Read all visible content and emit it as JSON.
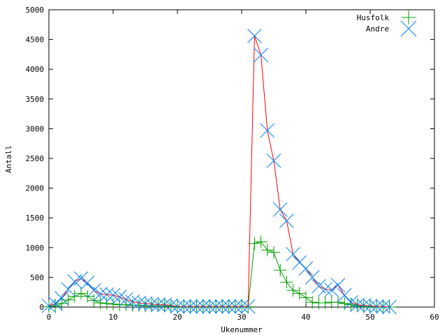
{
  "chart_data": {
    "type": "line",
    "title": "",
    "xlabel": "Ukenummer",
    "ylabel": "Antall",
    "xlim": [
      0,
      60
    ],
    "ylim": [
      0,
      5000
    ],
    "xticks": [
      0,
      10,
      20,
      30,
      40,
      50,
      60
    ],
    "yticks": [
      0,
      500,
      1000,
      1500,
      2000,
      2500,
      3000,
      3500,
      4000,
      4500,
      5000
    ],
    "grid": false,
    "legend_position": "top-right",
    "series": [
      {
        "name": "Husfolk",
        "marker": "plus",
        "color": "#00a000",
        "line_color": "#00a000",
        "x": [
          0,
          1,
          2,
          3,
          4,
          5,
          6,
          7,
          8,
          9,
          10,
          11,
          12,
          13,
          14,
          15,
          16,
          17,
          18,
          19,
          20,
          21,
          22,
          23,
          24,
          25,
          26,
          27,
          28,
          29,
          30,
          31,
          32,
          33,
          34,
          35,
          36,
          37,
          38,
          39,
          40,
          41,
          42,
          43,
          44,
          45,
          46,
          47,
          48,
          49,
          50,
          51,
          52,
          53
        ],
        "y": [
          10,
          20,
          60,
          120,
          180,
          230,
          180,
          110,
          70,
          60,
          50,
          40,
          40,
          30,
          30,
          20,
          20,
          20,
          20,
          10,
          5,
          5,
          5,
          5,
          5,
          5,
          5,
          5,
          5,
          5,
          5,
          5,
          1070,
          1100,
          960,
          920,
          620,
          420,
          280,
          230,
          160,
          80,
          70,
          70,
          80,
          80,
          60,
          40,
          20,
          10,
          5,
          5,
          0,
          0
        ]
      },
      {
        "name": "Andre",
        "marker": "cross",
        "color": "#0080ff",
        "line_color": "#ff0000",
        "x": [
          0,
          1,
          2,
          3,
          4,
          5,
          6,
          7,
          8,
          9,
          10,
          11,
          12,
          13,
          14,
          15,
          16,
          17,
          18,
          19,
          20,
          21,
          22,
          23,
          24,
          25,
          26,
          27,
          28,
          29,
          30,
          31,
          32,
          33,
          34,
          35,
          36,
          37,
          38,
          39,
          40,
          41,
          42,
          43,
          44,
          45,
          46,
          47,
          48,
          49,
          50,
          51,
          52,
          53
        ],
        "y": [
          20,
          60,
          150,
          300,
          430,
          480,
          410,
          280,
          220,
          210,
          200,
          170,
          130,
          90,
          70,
          60,
          50,
          40,
          40,
          30,
          10,
          10,
          10,
          10,
          10,
          10,
          10,
          10,
          10,
          10,
          10,
          10,
          4560,
          4240,
          2970,
          2460,
          1640,
          1450,
          890,
          750,
          650,
          500,
          350,
          300,
          290,
          370,
          200,
          80,
          40,
          30,
          20,
          10,
          10,
          0
        ]
      }
    ]
  }
}
